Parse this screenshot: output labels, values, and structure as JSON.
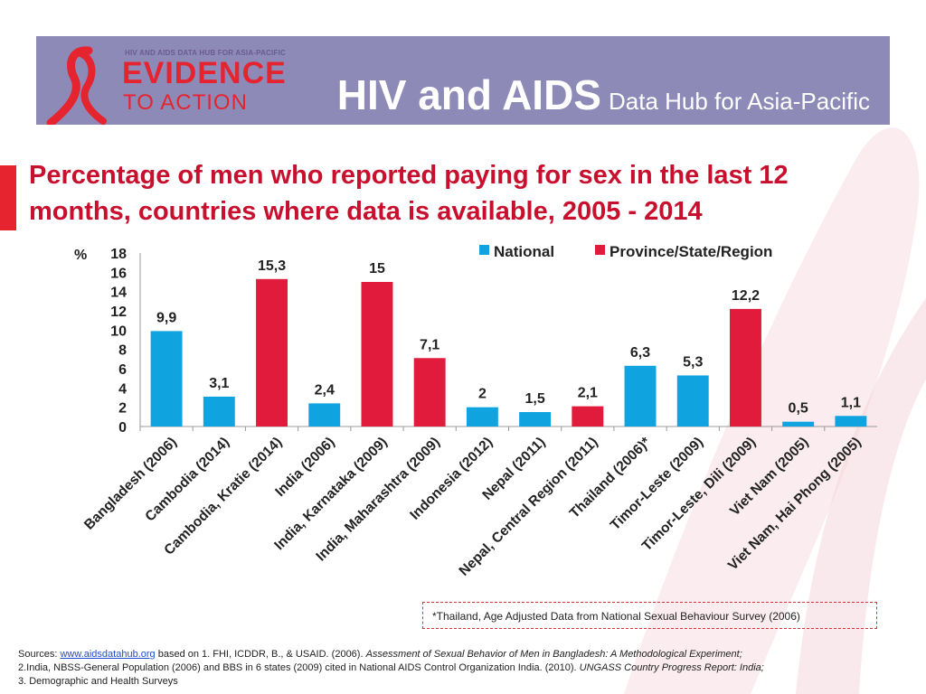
{
  "header": {
    "logo_small": "HIV AND AIDS DATA HUB FOR ASIA-PACIFIC",
    "logo_evidence": "EVIDENCE",
    "logo_toaction": "TO ACTION",
    "title_main": "HIV and AIDS",
    "title_sub": "Data Hub for Asia-Pacific"
  },
  "slide": {
    "title": "Percentage of men who reported paying for sex in the last 12 months, countries where data is available, 2005 - 2014"
  },
  "colors": {
    "national": "#0fa4e0",
    "province": "#e11b3c",
    "header": "#8e8ab8",
    "title": "#c8102e"
  },
  "chart_data": {
    "type": "bar",
    "title": "Percentage of men who reported paying for sex in the last 12 months, countries where data is available, 2005 - 2014",
    "ylabel": "%",
    "ylim": [
      0,
      18
    ],
    "yticks": [
      "0",
      "2",
      "4",
      "6",
      "8",
      "10",
      "12",
      "14",
      "16",
      "18"
    ],
    "legend": [
      {
        "name": "National",
        "color": "#0fa4e0"
      },
      {
        "name": "Province/State/Region",
        "color": "#e11b3c"
      }
    ],
    "legend_position": "top-right",
    "bars": [
      {
        "category": "Bangladesh (2006)",
        "value": 9.9,
        "label": "9,9",
        "series": "National"
      },
      {
        "category": "Cambodia (2014)",
        "value": 3.1,
        "label": "3,1",
        "series": "National"
      },
      {
        "category": "Cambodia, Kratie (2014)",
        "value": 15.3,
        "label": "15,3",
        "series": "Province/State/Region"
      },
      {
        "category": "India (2006)",
        "value": 2.4,
        "label": "2,4",
        "series": "National"
      },
      {
        "category": "India, Karnataka (2009)",
        "value": 15,
        "label": "15",
        "series": "Province/State/Region"
      },
      {
        "category": "India, Maharashtra (2009)",
        "value": 7.1,
        "label": "7,1",
        "series": "Province/State/Region"
      },
      {
        "category": "Indonesia (2012)",
        "value": 2,
        "label": "2",
        "series": "National"
      },
      {
        "category": "Nepal (2011)",
        "value": 1.5,
        "label": "1,5",
        "series": "National"
      },
      {
        "category": "Nepal, Central Region (2011)",
        "value": 2.1,
        "label": "2,1",
        "series": "Province/State/Region"
      },
      {
        "category": "Thailand (2006)*",
        "value": 6.3,
        "label": "6,3",
        "series": "National"
      },
      {
        "category": "Timor-Leste (2009)",
        "value": 5.3,
        "label": "5,3",
        "series": "National"
      },
      {
        "category": "Timor-Leste, Dili (2009)",
        "value": 12.2,
        "label": "12,2",
        "series": "Province/State/Region"
      },
      {
        "category": "Viet Nam (2005)",
        "value": 0.5,
        "label": "0,5",
        "series": "National"
      },
      {
        "category": "Viet Nam, Hai Phong (2005)",
        "value": 1.1,
        "label": "1,1",
        "series": "National"
      }
    ]
  },
  "note": "*Thailand, Age Adjusted Data from National Sexual Behaviour Survey (2006)",
  "sources": {
    "prefix": "Sources: ",
    "link": "www.aidsdatahub.org",
    "line1_rest": " based on 1. FHI, ICDDR, B., & USAID. (2006). ",
    "line1_italic": "Assessment of Sexual Behavior of Men in Bangladesh: A Methodological Experiment;",
    "line2": "2.India, NBSS-General Population (2006) and BBS in 6 states (2009) cited in National AIDS Control Organization India. (2010). ",
    "line2_italic": "UNGASS Country Progress Report: India;",
    "line3": "3. Demographic and Health Surveys"
  }
}
